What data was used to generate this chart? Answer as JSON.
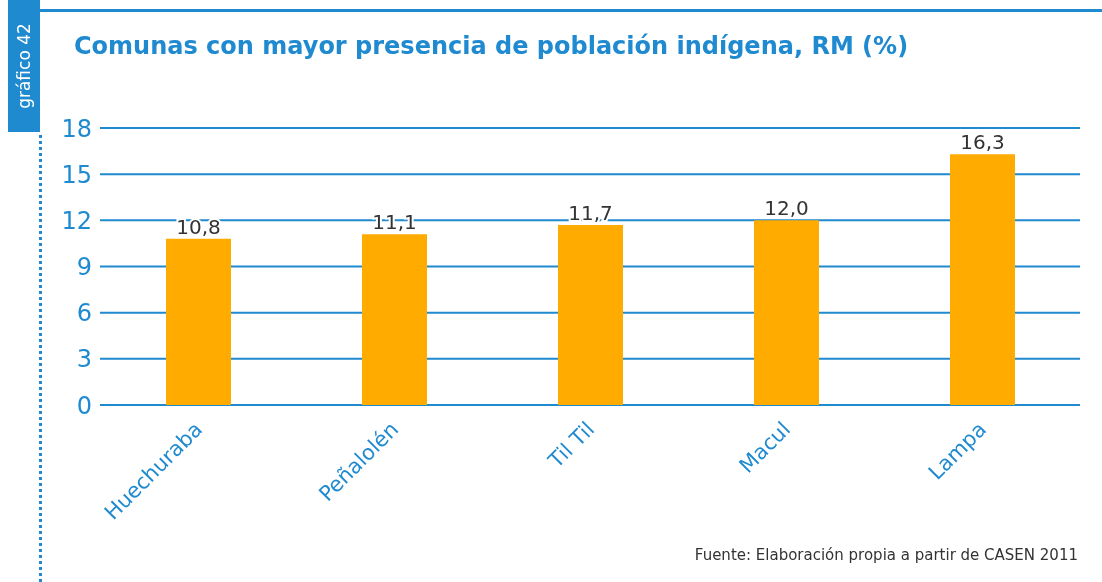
{
  "chart_data": {
    "type": "bar",
    "title": "Comunas con mayor presencia de población indígena, RM (%)",
    "categories": [
      "Huechuraba",
      "Peñalolén",
      "Til Til",
      "Macul",
      "Lampa"
    ],
    "values": [
      10.8,
      11.1,
      11.7,
      12.0,
      16.3
    ],
    "value_labels": [
      "10,8",
      "11,1",
      "11,7",
      "12,0",
      "16,3"
    ],
    "color": "#ffab00",
    "ylim": [
      0,
      18
    ],
    "yticks": [
      0,
      3,
      6,
      9,
      12,
      15,
      18
    ],
    "grid": "y",
    "annotations": [
      "gráfico 42",
      "Fuente: Elaboración propia a partir de CASEN 2011"
    ]
  }
}
